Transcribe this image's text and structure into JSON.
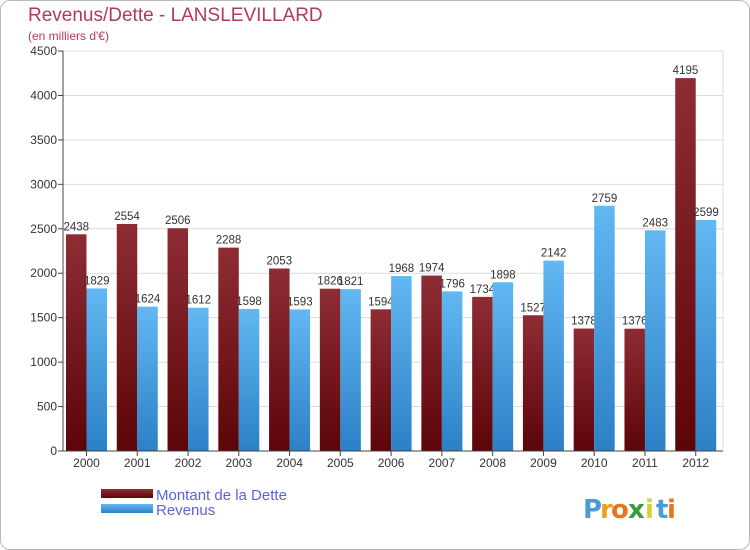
{
  "header": {
    "title": "Revenus/Dette - LANSLEVILLARD",
    "subtitle": "(en milliers d'€)"
  },
  "logo": {
    "text": "Proxiti",
    "letters": [
      {
        "ch": "P",
        "color": "#4a9ad6"
      },
      {
        "ch": "r",
        "color": "#e8a21c"
      },
      {
        "ch": "o",
        "color": "#e8751c"
      },
      {
        "ch": "x",
        "color": "#3c9a3c"
      },
      {
        "ch": "i",
        "color": "#d4d23a"
      },
      {
        "ch": "t",
        "color": "#4a9ad6"
      },
      {
        "ch": "i",
        "color": "#e8751c"
      }
    ]
  },
  "chart_data": {
    "type": "bar",
    "categories": [
      "2000",
      "2001",
      "2002",
      "2003",
      "2004",
      "2005",
      "2006",
      "2007",
      "2008",
      "2009",
      "2010",
      "2011",
      "2012"
    ],
    "series": [
      {
        "name": "Montant de la Dette",
        "color": "#7a1a1f",
        "values": [
          2438,
          2554,
          2506,
          2288,
          2053,
          1826,
          1594,
          1974,
          1734,
          1527,
          1378,
          1376,
          4195
        ],
        "labels": [
          "2438",
          "2554",
          "2506",
          "2288",
          "2053",
          "1826",
          "1594",
          "1974",
          "1734",
          "1527",
          "1378",
          "1376",
          "4195"
        ]
      },
      {
        "name": "Revenus",
        "color": "#45a3e8",
        "values": [
          1829,
          1624,
          1612,
          1598,
          1593,
          1821,
          1968,
          1796,
          1898,
          2142,
          2759,
          2483,
          2599
        ],
        "labels": [
          "1829",
          "1624",
          "1612",
          "1598",
          "1593",
          "1821",
          "1968",
          "1796",
          "1898",
          "2142",
          "2759",
          "2483",
          "2599"
        ]
      }
    ],
    "title": "Revenus/Dette - LANSLEVILLARD",
    "ylabel": "(en milliers d'€)",
    "xlabel": "",
    "ylim": [
      0,
      4500
    ],
    "yticks": [
      "0",
      "500",
      "1000",
      "1500",
      "2000",
      "2500",
      "3000",
      "3500",
      "4000",
      "4500"
    ],
    "grid": true,
    "legend_position": "bottom-left"
  }
}
